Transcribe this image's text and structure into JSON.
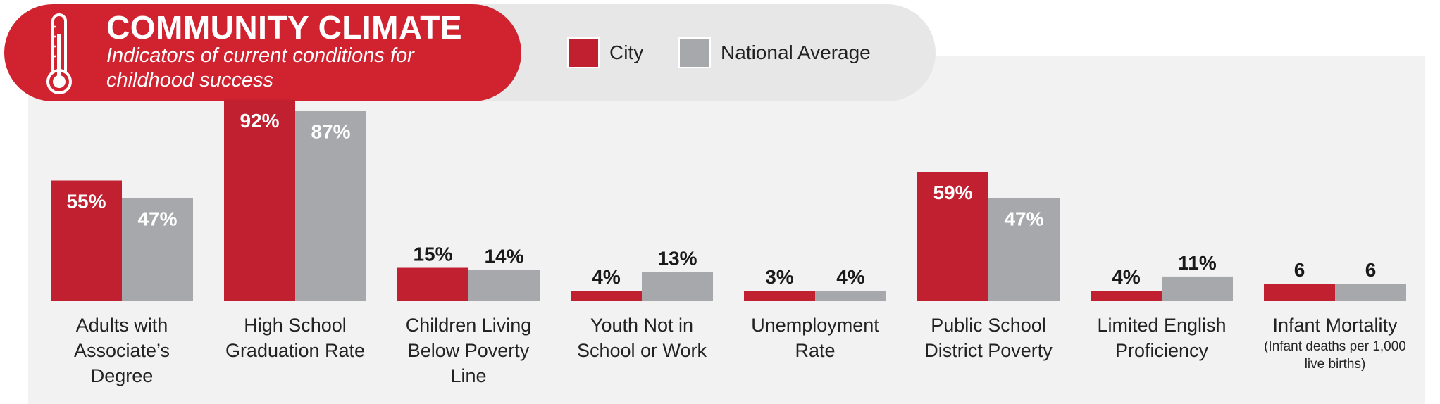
{
  "header": {
    "title": "COMMUNITY CLIMATE",
    "subtitle": "Indicators of current conditions for childhood success"
  },
  "legend": [
    {
      "label": "City",
      "color": "#c0202f"
    },
    {
      "label": "National Average",
      "color": "#a7a8ab"
    }
  ],
  "colors": {
    "city": "#c0202f",
    "national": "#a7a8ab",
    "title_bg": "#d0232f",
    "panel_bg": "#f2f2f2"
  },
  "chart_data": {
    "type": "bar",
    "categories": [
      {
        "label": "Adults with Associate’s Degree",
        "note": ""
      },
      {
        "label": "High School Graduation Rate",
        "note": ""
      },
      {
        "label": "Children Living Below Poverty Line",
        "note": ""
      },
      {
        "label": "Youth Not in School or Work",
        "note": ""
      },
      {
        "label": "Unemployment Rate",
        "note": ""
      },
      {
        "label": "Public School District Poverty",
        "note": ""
      },
      {
        "label": "Limited English Proficiency",
        "note": ""
      },
      {
        "label": "Infant Mortality",
        "note": "(Infant deaths per 1,000 live births)"
      }
    ],
    "series": [
      {
        "name": "City",
        "values": [
          55,
          92,
          15,
          4,
          3,
          59,
          4,
          6
        ],
        "labels": [
          "55%",
          "92%",
          "15%",
          "4%",
          "3%",
          "59%",
          "4%",
          "6"
        ]
      },
      {
        "name": "National Average",
        "values": [
          47,
          87,
          14,
          13,
          4,
          47,
          11,
          6
        ],
        "labels": [
          "47%",
          "87%",
          "14%",
          "13%",
          "4%",
          "47%",
          "11%",
          "6"
        ]
      }
    ],
    "ylim": [
      0,
      100
    ]
  }
}
